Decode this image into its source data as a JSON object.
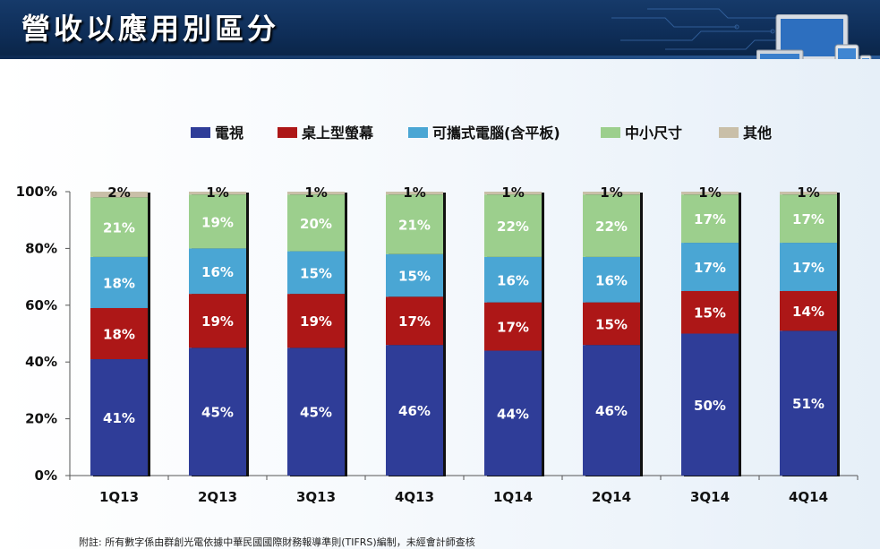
{
  "page": {
    "title": "營收以應用別區分"
  },
  "footnote": "附註: 所有數字係由群創光電依據中華民國國際財務報導準則(TIFRS)編制，未經會計師查核",
  "chart_data": {
    "type": "bar",
    "stacked": true,
    "percent_stacked": true,
    "categories": [
      "1Q13",
      "2Q13",
      "3Q13",
      "4Q13",
      "1Q14",
      "2Q14",
      "3Q14",
      "4Q14"
    ],
    "series": [
      {
        "name": "電視",
        "color": "#2f3d98",
        "values": [
          41,
          45,
          45,
          46,
          44,
          46,
          50,
          51
        ]
      },
      {
        "name": "桌上型螢幕",
        "color": "#ad1717",
        "values": [
          18,
          19,
          19,
          17,
          17,
          15,
          15,
          14
        ]
      },
      {
        "name": "可攜式電腦(含平板)",
        "color": "#4aa6d4",
        "values": [
          18,
          16,
          15,
          15,
          16,
          16,
          17,
          17
        ]
      },
      {
        "name": "中小尺寸",
        "color": "#9ccf8d",
        "values": [
          21,
          19,
          20,
          21,
          22,
          22,
          17,
          17
        ]
      },
      {
        "name": "其他",
        "color": "#c9bfa8",
        "values": [
          2,
          1,
          1,
          1,
          1,
          1,
          1,
          1
        ]
      }
    ],
    "data_labels": [
      [
        "41%",
        "45%",
        "45%",
        "46%",
        "44%",
        "46%",
        "50%",
        "51%"
      ],
      [
        "18%",
        "19%",
        "19%",
        "17%",
        "17%",
        "15%",
        "15%",
        "14%"
      ],
      [
        "18%",
        "16%",
        "15%",
        "15%",
        "16%",
        "16%",
        "17%",
        "17%"
      ],
      [
        "21%",
        "19%",
        "20%",
        "21%",
        "22%",
        "22%",
        "17%",
        "17%"
      ],
      [
        "2%",
        "1%",
        "1%",
        "1%",
        "1%",
        "1%",
        "1%",
        "1%"
      ]
    ],
    "yticks": [
      "0%",
      "20%",
      "40%",
      "60%",
      "80%",
      "100%"
    ],
    "ylim": [
      0,
      100
    ],
    "legend_position": "top",
    "grid": false
  }
}
